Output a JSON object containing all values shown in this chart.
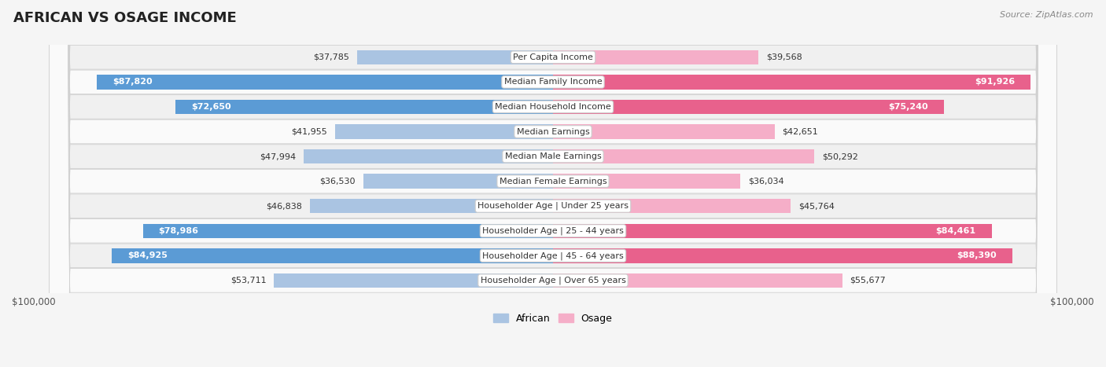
{
  "title": "African vs Osage Income",
  "source": "Source: ZipAtlas.com",
  "categories": [
    "Per Capita Income",
    "Median Family Income",
    "Median Household Income",
    "Median Earnings",
    "Median Male Earnings",
    "Median Female Earnings",
    "Householder Age | Under 25 years",
    "Householder Age | 25 - 44 years",
    "Householder Age | 45 - 64 years",
    "Householder Age | Over 65 years"
  ],
  "african_values": [
    37785,
    87820,
    72650,
    41955,
    47994,
    36530,
    46838,
    78986,
    84925,
    53711
  ],
  "osage_values": [
    39568,
    91926,
    75240,
    42651,
    50292,
    36034,
    45764,
    84461,
    88390,
    55677
  ],
  "african_labels": [
    "$37,785",
    "$87,820",
    "$72,650",
    "$41,955",
    "$47,994",
    "$36,530",
    "$46,838",
    "$78,986",
    "$84,925",
    "$53,711"
  ],
  "osage_labels": [
    "$39,568",
    "$91,926",
    "$75,240",
    "$42,651",
    "$50,292",
    "$36,034",
    "$45,764",
    "$84,461",
    "$88,390",
    "$55,677"
  ],
  "max_value": 100000,
  "african_color_light": "#aac4e2",
  "african_color_dark": "#5b9bd5",
  "osage_color_light": "#f5aec8",
  "osage_color_dark": "#e8618c",
  "threshold": 60000,
  "bar_height": 0.58,
  "row_color_odd": "#f0f0f0",
  "row_color_even": "#fafafa",
  "background_color": "#f5f5f5",
  "title_fontsize": 13,
  "label_fontsize": 8,
  "category_fontsize": 8
}
